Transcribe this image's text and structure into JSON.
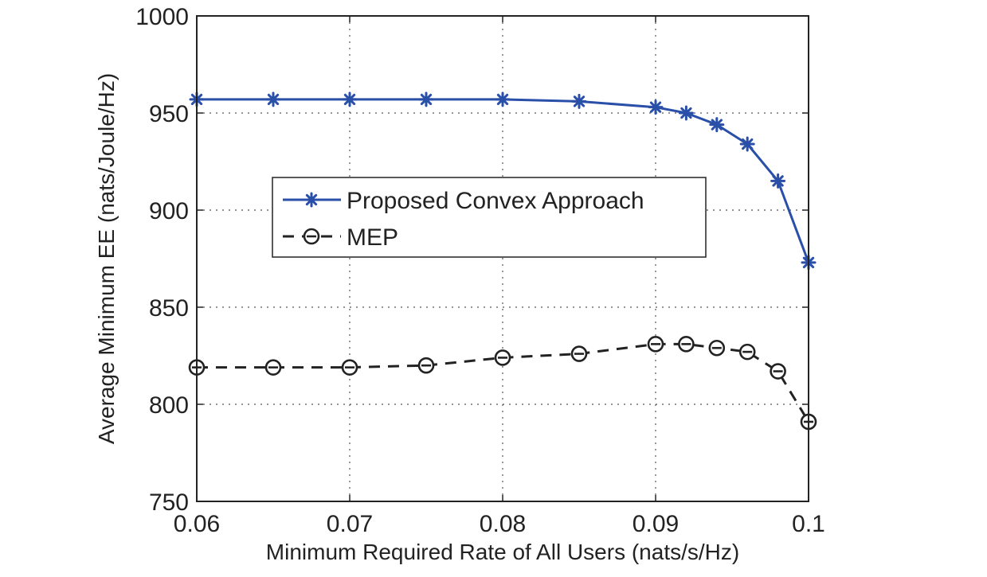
{
  "chart_data": {
    "type": "line",
    "xlabel": "Minimum Required Rate of All Users (nats/s/Hz)",
    "ylabel": "Average Minimum EE (nats/Joule/Hz)",
    "xlim": [
      0.06,
      0.1
    ],
    "ylim": [
      750,
      1000
    ],
    "xticks": [
      "0.06",
      "0.07",
      "0.08",
      "0.09",
      "0.1"
    ],
    "yticks": [
      "750",
      "800",
      "850",
      "900",
      "950",
      "1000"
    ],
    "grid": true,
    "legend_position": "center",
    "series": [
      {
        "name": "Proposed Convex Approach",
        "color": "#2a4fa8",
        "line_style": "solid",
        "marker": "asterisk",
        "x": [
          0.06,
          0.065,
          0.07,
          0.075,
          0.08,
          0.085,
          0.09,
          0.092,
          0.094,
          0.096,
          0.098,
          0.1
        ],
        "y": [
          957,
          957,
          957,
          957,
          957,
          956,
          953,
          950,
          944,
          934,
          915,
          873
        ]
      },
      {
        "name": "MEP",
        "color": "#222222",
        "line_style": "dashed",
        "marker": "circle",
        "x": [
          0.06,
          0.065,
          0.07,
          0.075,
          0.08,
          0.085,
          0.09,
          0.092,
          0.094,
          0.096,
          0.098,
          0.1
        ],
        "y": [
          819,
          819,
          819,
          820,
          824,
          826,
          831,
          831,
          829,
          827,
          817,
          791
        ]
      }
    ]
  }
}
